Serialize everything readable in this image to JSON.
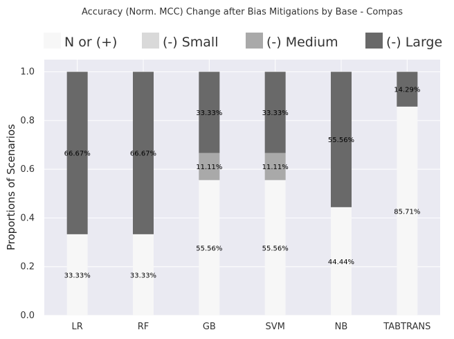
{
  "chart_data": {
    "type": "bar",
    "stacked": true,
    "title": "Accuracy (Norm. MCC) Change after Bias Mitigations by Base - Compas",
    "ylabel": "Proportions of Scenarios",
    "xlabel": "",
    "ylim": [
      0,
      1.05
    ],
    "yticks": [
      "0.0",
      "0.2",
      "0.4",
      "0.6",
      "0.8",
      "1.0"
    ],
    "grid": true,
    "legend_position": "top",
    "categories": [
      "LR",
      "RF",
      "GB",
      "SVM",
      "NB",
      "TABTRANS"
    ],
    "series": [
      {
        "name": "N or (+)",
        "color": "#f7f7f7",
        "values": [
          0.3333,
          0.3333,
          0.5556,
          0.5556,
          0.4444,
          0.8571
        ],
        "labels": [
          "33.33%",
          "33.33%",
          "55.56%",
          "55.56%",
          "44.44%",
          "85.71%"
        ]
      },
      {
        "name": "(-) Small",
        "color": "#d9d9d9",
        "values": [
          0,
          0,
          0,
          0,
          0,
          0
        ],
        "labels": [
          "",
          "",
          "",
          "",
          "",
          ""
        ]
      },
      {
        "name": "(-) Medium",
        "color": "#a9a9a9",
        "values": [
          0,
          0,
          0.1111,
          0.1111,
          0,
          0
        ],
        "labels": [
          "",
          "",
          "11.11%",
          "11.11%",
          "",
          ""
        ]
      },
      {
        "name": "(-) Large",
        "color": "#696969",
        "values": [
          0.6667,
          0.6667,
          0.3333,
          0.3333,
          0.5556,
          0.1429
        ],
        "labels": [
          "66.67%",
          "66.67%",
          "33.33%",
          "33.33%",
          "55.56%",
          "14.29%"
        ]
      }
    ]
  }
}
